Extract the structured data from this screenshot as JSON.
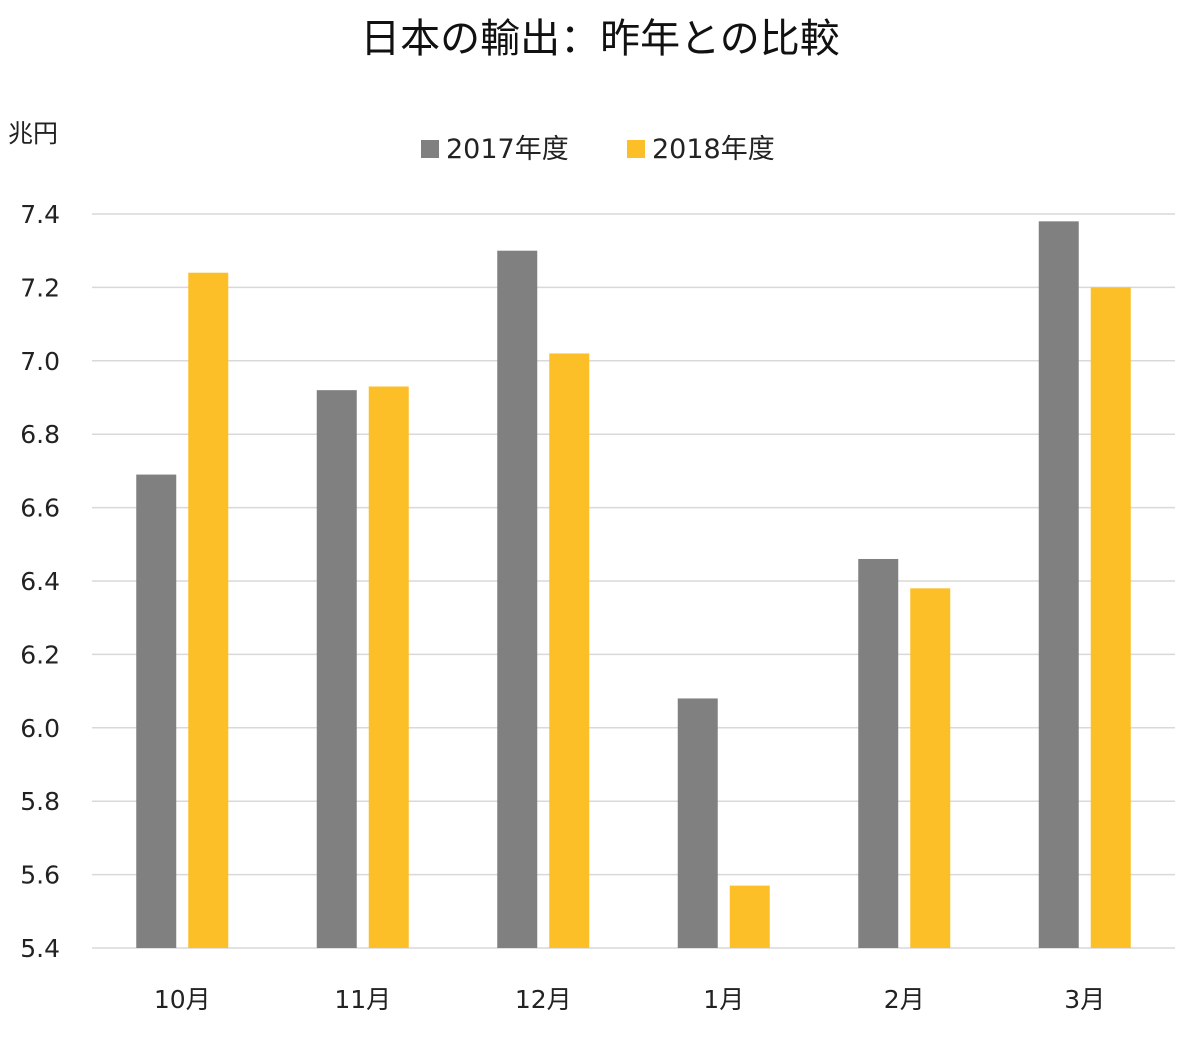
{
  "chart_data": {
    "type": "bar",
    "title": "日本の輸出：昨年との比較",
    "unit_label": "兆円",
    "xlabel": "",
    "ylabel": "",
    "categories": [
      "10月",
      "11月",
      "12月",
      "1月",
      "2月",
      "3月"
    ],
    "series": [
      {
        "name": "2017年度",
        "color": "#808080",
        "values": [
          6.69,
          6.92,
          7.3,
          6.08,
          6.46,
          7.38
        ]
      },
      {
        "name": "2018年度",
        "color": "#FCBF28",
        "values": [
          7.24,
          6.93,
          7.02,
          5.57,
          6.38,
          7.2
        ]
      }
    ],
    "ylim": [
      5.4,
      7.4
    ],
    "yticks": [
      "5.4",
      "5.6",
      "5.8",
      "6.0",
      "6.2",
      "6.4",
      "6.6",
      "6.8",
      "7.0",
      "7.2",
      "7.4"
    ],
    "grid": true,
    "legend_position": "top-center"
  }
}
